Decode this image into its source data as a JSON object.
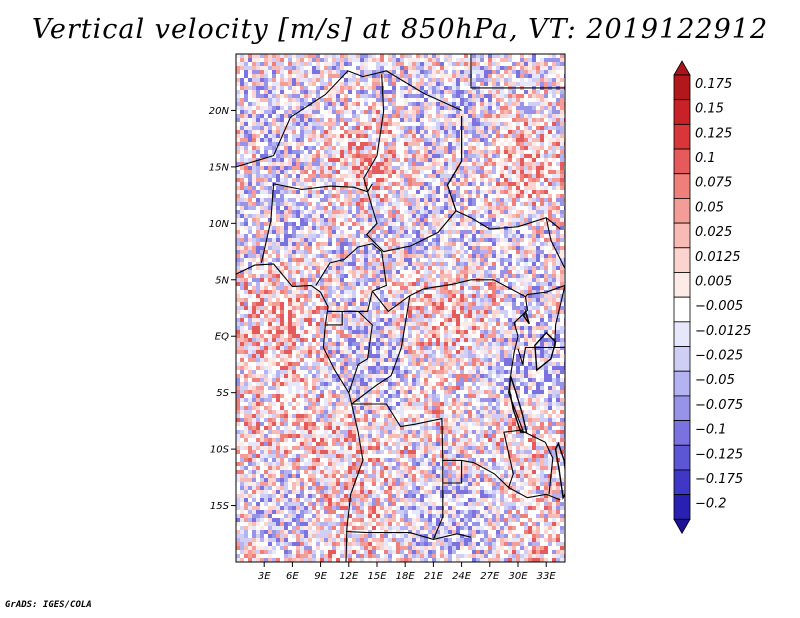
{
  "title": "Vertical velocity [m/s] at 850hPa, VT: 2019122912",
  "footer": "GrADS: IGES/COLA",
  "map": {
    "lon_range": [
      0,
      35
    ],
    "lat_range": [
      -20,
      25
    ],
    "lat_ticks": [
      {
        "value": 20,
        "label": "20N"
      },
      {
        "value": 15,
        "label": "15N"
      },
      {
        "value": 10,
        "label": "10N"
      },
      {
        "value": 5,
        "label": "5N"
      },
      {
        "value": 0,
        "label": "EQ"
      },
      {
        "value": -5,
        "label": "5S"
      },
      {
        "value": -10,
        "label": "10S"
      },
      {
        "value": -15,
        "label": "15S"
      }
    ],
    "lon_ticks": [
      {
        "value": 3,
        "label": "3E"
      },
      {
        "value": 6,
        "label": "6E"
      },
      {
        "value": 9,
        "label": "9E"
      },
      {
        "value": 12,
        "label": "12E"
      },
      {
        "value": 15,
        "label": "15E"
      },
      {
        "value": 18,
        "label": "18E"
      },
      {
        "value": 21,
        "label": "21E"
      },
      {
        "value": 24,
        "label": "24E"
      },
      {
        "value": 27,
        "label": "27E"
      },
      {
        "value": 30,
        "label": "30E"
      },
      {
        "value": 33,
        "label": "33E"
      }
    ]
  },
  "colorbar": {
    "levels": [
      {
        "label": "0.175",
        "color": "#b2181b"
      },
      {
        "label": "0.15",
        "color": "#c82128"
      },
      {
        "label": "0.125",
        "color": "#d9363a"
      },
      {
        "label": "0.1",
        "color": "#e55a5a"
      },
      {
        "label": "0.075",
        "color": "#ee7f7b"
      },
      {
        "label": "0.05",
        "color": "#f49c97"
      },
      {
        "label": "0.025",
        "color": "#f8bab5"
      },
      {
        "label": "0.0125",
        "color": "#fbd4d0"
      },
      {
        "label": "0.005",
        "color": "#fdebe8"
      },
      {
        "label": "−0.005",
        "color": "#ffffff"
      },
      {
        "label": "−0.0125",
        "color": "#e7e7fb"
      },
      {
        "label": "−0.025",
        "color": "#cfcff6"
      },
      {
        "label": "−0.05",
        "color": "#b4b2f0"
      },
      {
        "label": "−0.075",
        "color": "#9793e8"
      },
      {
        "label": "−0.1",
        "color": "#7a73df"
      },
      {
        "label": "−0.125",
        "color": "#5c55d4"
      },
      {
        "label": "−0.175",
        "color": "#3f38c6"
      },
      {
        "label": "−0.2",
        "color": "#2a1fb3"
      }
    ],
    "top_color": "#a8151a",
    "bottom_color": "#1e1196"
  }
}
